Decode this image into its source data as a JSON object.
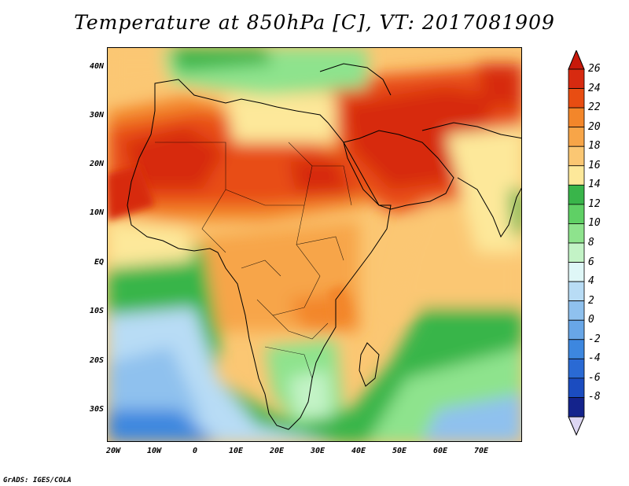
{
  "title": "Temperature at 850hPa [C], VT: 2017081909",
  "footer": "GrADS: IGES/COLA",
  "map": {
    "region": "Africa and Middle East",
    "lon_range": [
      -22,
      80
    ],
    "lat_range": [
      -37,
      45
    ],
    "lat_ticks": [
      "40N",
      "30N",
      "20N",
      "10N",
      "EQ",
      "10S",
      "20S",
      "30S"
    ],
    "lon_ticks": [
      "20W",
      "10W",
      "0",
      "10E",
      "20E",
      "30E",
      "40E",
      "50E",
      "60E",
      "70E"
    ]
  },
  "colorbar": {
    "labels": [
      "26",
      "24",
      "22",
      "20",
      "18",
      "16",
      "14",
      "12",
      "10",
      "8",
      "6",
      "4",
      "2",
      "0",
      "-2",
      "-4",
      "-6",
      "-8"
    ],
    "colors": [
      "#d72a10",
      "#e84d12",
      "#f3862a",
      "#f7a548",
      "#fbc773",
      "#fde89a",
      "#39b54a",
      "#5fd065",
      "#8ee38d",
      "#c3f3c6",
      "#dff7f7",
      "#b8dcf5",
      "#8fc1ee",
      "#68a6e7",
      "#3d87df",
      "#2a6ad4",
      "#1b4cc0",
      "#14238c"
    ],
    "top_arrow_color": "#c8190b",
    "bottom_arrow_color": "#ddd6f2"
  }
}
